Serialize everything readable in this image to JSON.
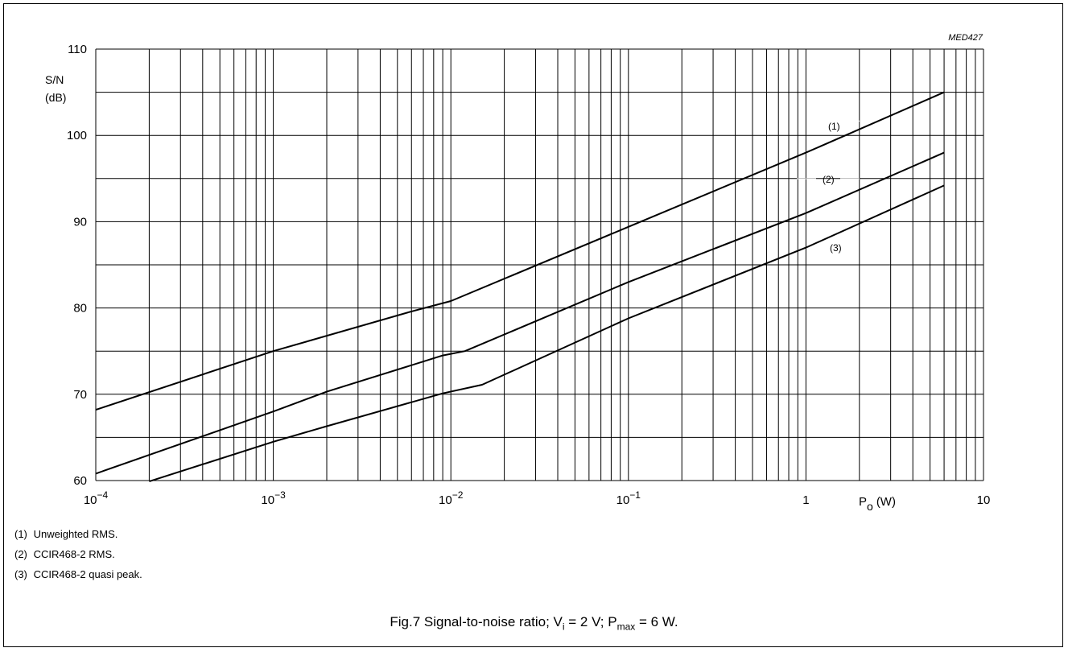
{
  "chart_data": {
    "type": "line",
    "figure_id": "MED427",
    "ylabel_line1": "S/N",
    "ylabel_line2": "(dB)",
    "xlabel_main": "P",
    "xlabel_sub": "o",
    "xlabel_unit": "(W)",
    "x_scale": "log",
    "xlim": [
      0.0001,
      10
    ],
    "ylim": [
      60,
      110
    ],
    "grid": true,
    "y_ticks": [
      60,
      70,
      80,
      90,
      100,
      110
    ],
    "x_ticks": [
      {
        "value": 0.0001,
        "base": "10",
        "exp": "−4"
      },
      {
        "value": 0.001,
        "base": "10",
        "exp": "−3"
      },
      {
        "value": 0.01,
        "base": "10",
        "exp": "−2"
      },
      {
        "value": 0.1,
        "base": "10",
        "exp": "−1"
      },
      {
        "value": 1,
        "base": "1",
        "exp": ""
      },
      {
        "value": 10,
        "base": "10",
        "exp": ""
      }
    ],
    "series": [
      {
        "name": "(1)",
        "x": [
          0.0001,
          0.001,
          0.006,
          0.01,
          0.1,
          1,
          6
        ],
        "y": [
          68.2,
          75.0,
          79.6,
          80.8,
          89.4,
          98.0,
          105.0
        ]
      },
      {
        "name": "(2)",
        "x": [
          0.0001,
          0.001,
          0.002,
          0.009,
          0.012,
          0.1,
          1,
          6
        ],
        "y": [
          60.8,
          68.0,
          70.3,
          74.5,
          75.0,
          83.0,
          91.0,
          98.0
        ]
      },
      {
        "name": "(3)",
        "x": [
          0.0002,
          0.001,
          0.002,
          0.009,
          0.015,
          0.1,
          1,
          6
        ],
        "y": [
          59.9,
          64.5,
          66.3,
          70.1,
          71.1,
          78.8,
          87.0,
          94.2
        ]
      }
    ]
  },
  "legend": [
    {
      "num": "(1)",
      "text": "Unweighted RMS."
    },
    {
      "num": "(2)",
      "text": "CCIR468-2 RMS."
    },
    {
      "num": "(3)",
      "text": "CCIR468-2 quasi peak."
    }
  ],
  "caption": {
    "prefix": "Fig.7  Signal-to-noise ratio; V",
    "sub1": "i",
    "mid": " = 2 V; P",
    "sub2": "max",
    "suffix": " = 6 W."
  }
}
